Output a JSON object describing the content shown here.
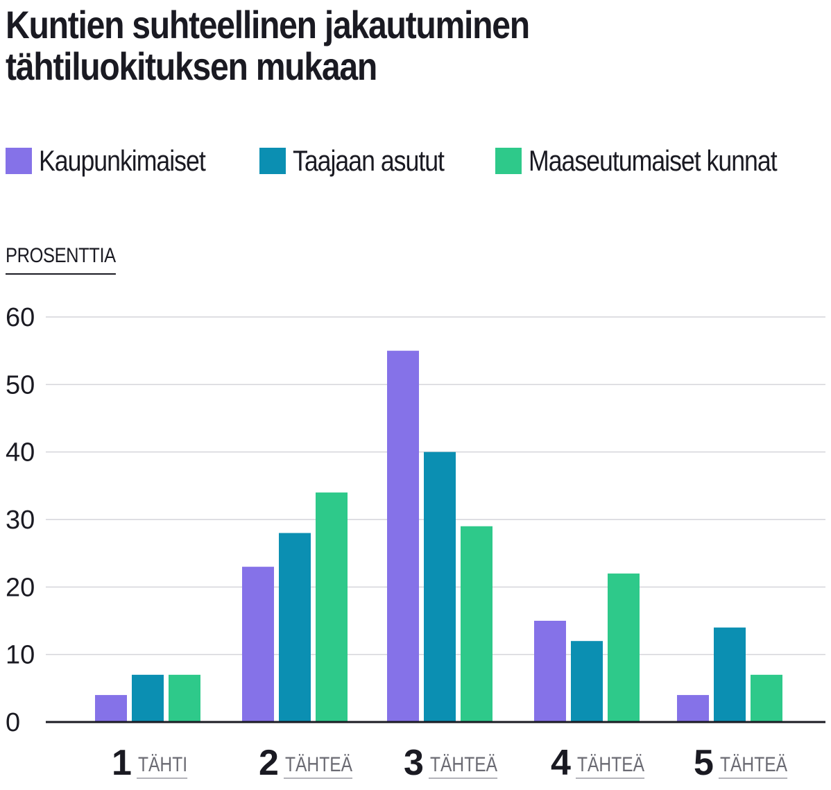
{
  "chart_data": {
    "type": "bar",
    "title": "Kuntien suhteellinen jakautuminen tähtiluokituksen mukaan",
    "ylabel": "PROSENTTIA",
    "ylim": [
      0,
      60
    ],
    "yticks": [
      0,
      10,
      20,
      30,
      40,
      50,
      60
    ],
    "grid": true,
    "legend": "top-left",
    "categories": [
      {
        "num": "1",
        "word": "TÄHTI"
      },
      {
        "num": "2",
        "word": "TÄHTEÄ"
      },
      {
        "num": "3",
        "word": "TÄHTEÄ"
      },
      {
        "num": "4",
        "word": "TÄHTEÄ"
      },
      {
        "num": "5",
        "word": "TÄHTEÄ"
      }
    ],
    "series": [
      {
        "name": "Kaupunkimaiset",
        "color": "#8572e8",
        "values": [
          4,
          23,
          55,
          15,
          4
        ]
      },
      {
        "name": "Taajaan asutut",
        "color": "#0b8fb2",
        "values": [
          7,
          28,
          40,
          12,
          14
        ]
      },
      {
        "name": "Maaseutumaiset kunnat",
        "color": "#2ec98a",
        "values": [
          7,
          34,
          29,
          22,
          7
        ]
      }
    ]
  }
}
